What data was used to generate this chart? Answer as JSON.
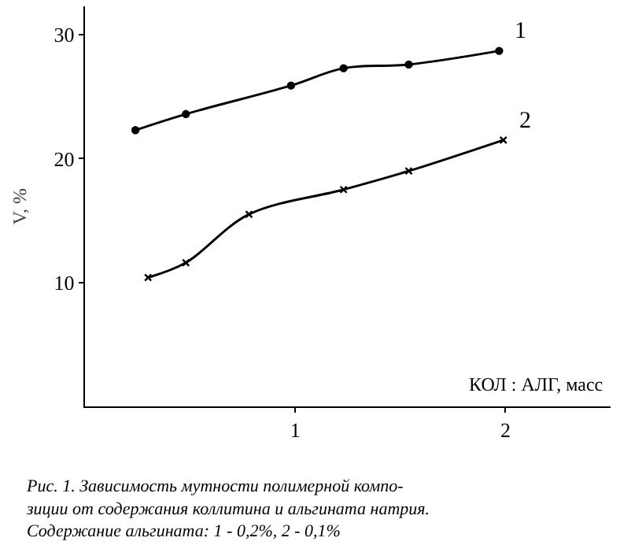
{
  "chart_data": {
    "type": "line",
    "xlabel": "КОЛ : АЛГ, масс",
    "ylabel": "V, %",
    "series": [
      {
        "name": "1",
        "color": "#000000",
        "marker": "circle",
        "x": [
          0.24,
          0.48,
          0.98,
          1.23,
          1.54,
          1.97
        ],
        "values": [
          22.3,
          23.6,
          25.9,
          27.3,
          27.6,
          28.7
        ]
      },
      {
        "name": "2",
        "color": "#000000",
        "marker": "cross",
        "x": [
          0.3,
          0.48,
          0.78,
          1.23,
          1.54,
          1.99
        ],
        "values": [
          10.4,
          11.6,
          15.5,
          17.5,
          19.0,
          21.5
        ]
      }
    ],
    "xlim": [
      0,
      2.5
    ],
    "xticks": [
      1,
      2
    ],
    "ylim": [
      0,
      32.3
    ],
    "yticks": [
      10,
      20,
      30
    ],
    "legend": false,
    "line_style": "solid",
    "annotations": [
      "Рис. 1. Зависимость мутности полимерной компо-\nзиции от содержания коллитина и альгината натрия.\nСодержание альгината: 1 - 0,2%, 2 - 0,1%"
    ]
  }
}
